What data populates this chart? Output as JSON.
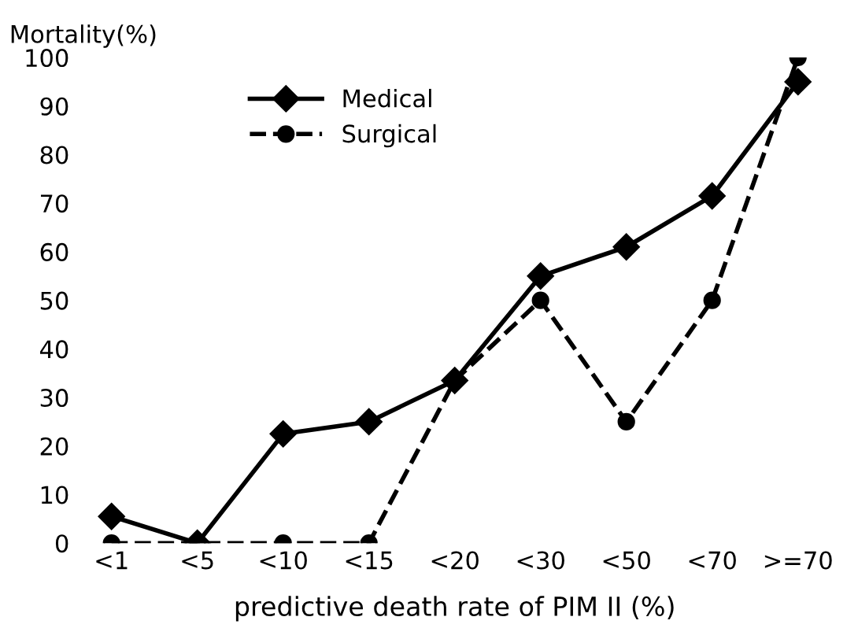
{
  "chart_data": {
    "type": "line",
    "ylabel": "Mortality(%)",
    "xlabel": "predictive death rate of PIM II (%)",
    "categories": [
      "<1",
      "<5",
      "<10",
      "<15",
      "<20",
      "<30",
      "<50",
      "<70",
      ">=70"
    ],
    "series": [
      {
        "name": "Medical",
        "color": "#000000",
        "marker": "diamond",
        "line_style": "solid",
        "values": [
          5.5,
          0,
          22.5,
          25,
          33.5,
          55,
          61,
          71.5,
          95
        ]
      },
      {
        "name": "Surgical",
        "color": "#000000",
        "marker": "circle",
        "line_style": "dashed",
        "values": [
          0,
          0,
          0,
          0,
          33.5,
          50,
          25,
          50,
          100
        ]
      }
    ],
    "ylim": [
      0,
      100
    ],
    "yticks": [
      0,
      10,
      20,
      30,
      40,
      50,
      60,
      70,
      80,
      90,
      100
    ],
    "grid": false,
    "legend": "top left"
  }
}
